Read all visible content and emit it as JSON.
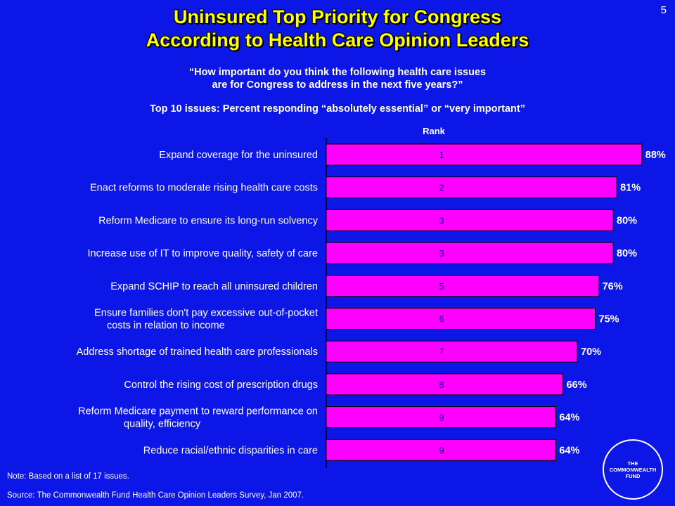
{
  "page_number": "5",
  "title_lines": [
    "Uninsured Top Priority for Congress",
    "According to Health Care Opinion Leaders"
  ],
  "question_lines": [
    "“How important do you think the following health care issues",
    "are for Congress to address in the next five years?”"
  ],
  "subtitle": "Top 10 issues: Percent responding “absolutely essential” or “very important”",
  "rank_header": "Rank",
  "note": "Note: Based on a list of 17 issues.",
  "source": "Source: The Commonwealth Fund Health Care Opinion Leaders Survey, Jan 2007.",
  "logo_text": [
    "THE",
    "COMMONWEALTH",
    "FUND"
  ],
  "colors": {
    "background": "#0c16e6",
    "title": "#ffff00",
    "bar": "#ff00ff",
    "text": "#ffffff",
    "rank": "#000080"
  },
  "chart_data": {
    "type": "bar",
    "orientation": "horizontal",
    "categories": [
      [
        "Expand coverage for the uninsured"
      ],
      [
        "Enact reforms to moderate rising health care costs"
      ],
      [
        "Reform Medicare to ensure its long-run solvency"
      ],
      [
        "Increase use of IT to improve quality, safety of care"
      ],
      [
        "Expand SCHIP to reach all uninsured children"
      ],
      [
        "Ensure families don't pay excessive out-of-pocket",
        "costs in relation to income"
      ],
      [
        "Address shortage of trained health care professionals"
      ],
      [
        "Control the rising cost of prescription drugs"
      ],
      [
        "Reform Medicare payment to reward performance on",
        "quality, efficiency"
      ],
      [
        "Reduce racial/ethnic disparities in care"
      ]
    ],
    "values": [
      88,
      81,
      80,
      80,
      76,
      75,
      70,
      66,
      64,
      64
    ],
    "value_labels": [
      "88%",
      "81%",
      "80%",
      "80%",
      "76%",
      "75%",
      "70%",
      "66%",
      "64%",
      "64%"
    ],
    "ranks": [
      "1",
      "2",
      "3",
      "3",
      "5",
      "6",
      "7",
      "8",
      "9",
      "9"
    ],
    "xlim": [
      0,
      100
    ],
    "grid": false,
    "legend": "none"
  }
}
